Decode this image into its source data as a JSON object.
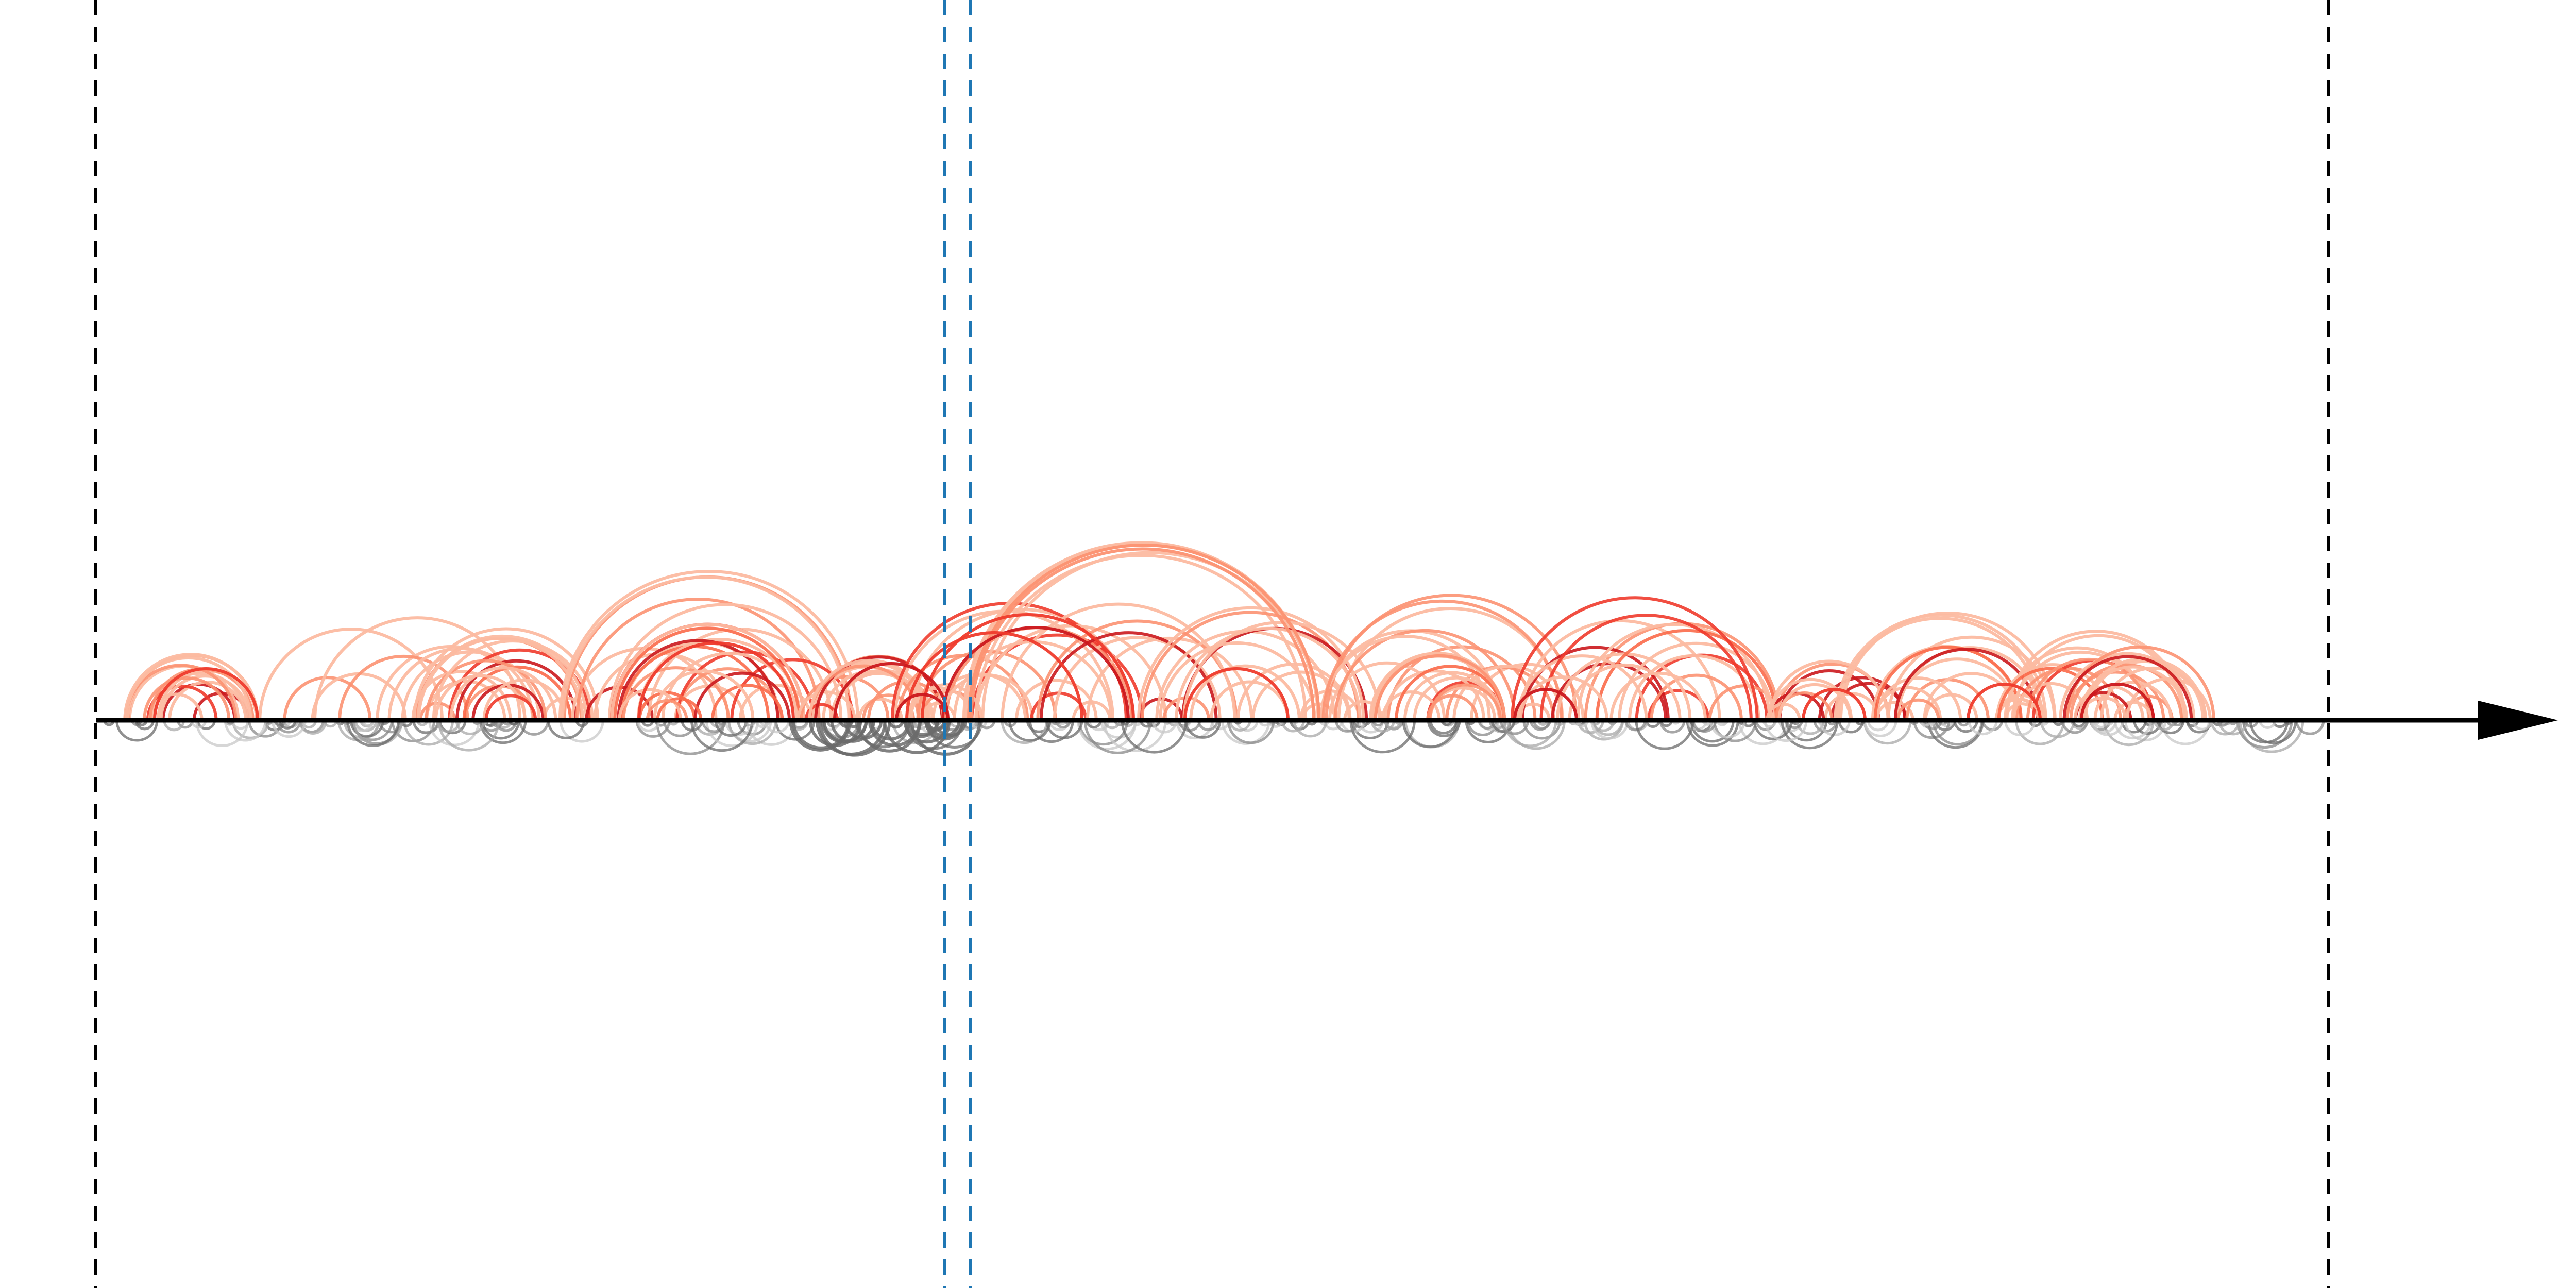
{
  "diagram": {
    "kind": "arc-diagram",
    "axis": {
      "direction": "left-to-right",
      "arrowhead": true,
      "color": "#000000"
    },
    "domain_markers": {
      "style": "dashed",
      "color": "#000000",
      "count": 2
    },
    "focus_markers": {
      "style": "dashed",
      "color": "#1f77b4",
      "count": 2
    },
    "upper_arcs": {
      "color_scale": [
        "#fcbba1",
        "#fc9272",
        "#fb6a4a",
        "#ef3b2c",
        "#cb181d"
      ],
      "count_approx": 200
    },
    "lower_arcs": {
      "color_scale": [
        "#c8c8c8",
        "#a8a8a8",
        "#8a8a8a",
        "#6b6b6b"
      ],
      "count_approx": 300
    },
    "labels_printed": false
  }
}
